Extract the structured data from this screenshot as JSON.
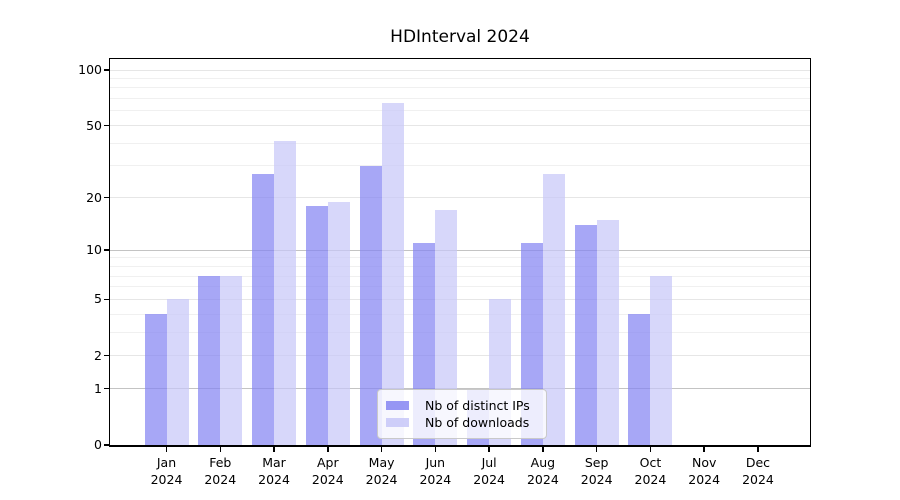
{
  "title": "HDInterval 2024",
  "chart_data": {
    "type": "bar",
    "title": "HDInterval 2024",
    "categories": [
      "Jan 2024",
      "Feb 2024",
      "Mar 2024",
      "Apr 2024",
      "May 2024",
      "Jun 2024",
      "Jul 2024",
      "Aug 2024",
      "Sep 2024",
      "Oct 2024",
      "Nov 2024",
      "Dec 2024"
    ],
    "series": [
      {
        "name": "Nb of distinct IPs",
        "color": "#8585f2",
        "values": [
          4,
          7,
          27,
          18,
          30,
          11,
          1,
          11,
          14,
          4,
          0,
          0
        ]
      },
      {
        "name": "Nb of downloads",
        "color": "#c7c7f8",
        "values": [
          5,
          7,
          41,
          19,
          66,
          17,
          5,
          27,
          15,
          7,
          0,
          0
        ]
      }
    ],
    "xlabel": "",
    "ylabel": "",
    "yscale": "symlog-log1p",
    "yticks": [
      0,
      1,
      2,
      5,
      10,
      20,
      50,
      100
    ],
    "yticks_minor": [
      3,
      4,
      6,
      7,
      8,
      9,
      30,
      40,
      60,
      70,
      80,
      90
    ],
    "ylim": [
      0,
      115
    ],
    "grid": true,
    "legend_position": "lower center inside"
  }
}
